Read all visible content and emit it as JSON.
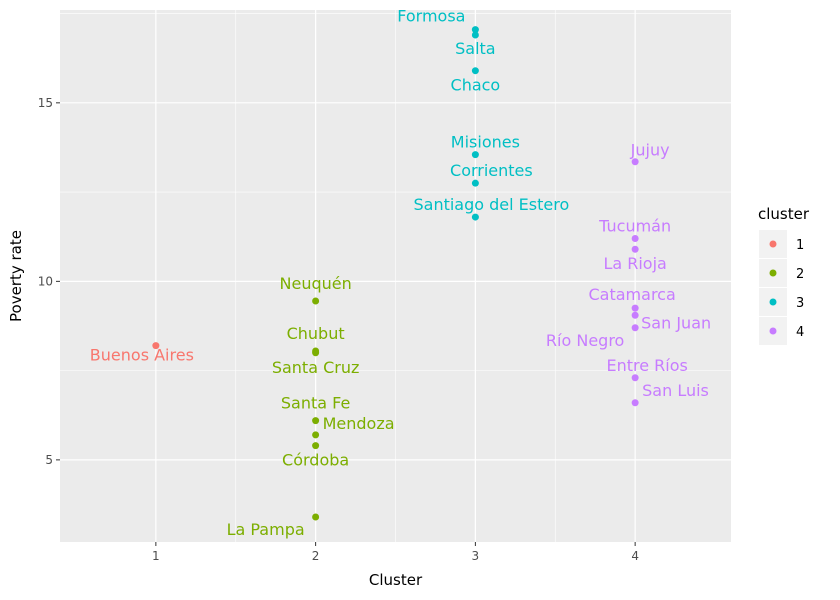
{
  "chart_data": {
    "type": "scatter",
    "title": "",
    "xlabel": "Cluster",
    "ylabel": "Poverty rate",
    "xlim": [
      0.4,
      4.6
    ],
    "ylim": [
      2.7,
      17.6
    ],
    "x_ticks": [
      1,
      2,
      3,
      4
    ],
    "y_ticks": [
      5,
      10,
      15
    ],
    "grid": true,
    "legend": {
      "title": "cluster",
      "position": "right",
      "entries": [
        {
          "label": "1",
          "color": "#F8766D"
        },
        {
          "label": "2",
          "color": "#7CAE00"
        },
        {
          "label": "3",
          "color": "#00BFC4"
        },
        {
          "label": "4",
          "color": "#C77CFF"
        }
      ]
    },
    "points": [
      {
        "label": "Buenos Aires",
        "cluster": 1,
        "x": 1,
        "y": 8.2
      },
      {
        "label": "Neuquén",
        "cluster": 2,
        "x": 2,
        "y": 9.45
      },
      {
        "label": "Chubut",
        "cluster": 2,
        "x": 2,
        "y": 8.05
      },
      {
        "label": "Santa Cruz",
        "cluster": 2,
        "x": 2,
        "y": 8.0
      },
      {
        "label": "Santa Fe",
        "cluster": 2,
        "x": 2,
        "y": 6.1
      },
      {
        "label": "Mendoza",
        "cluster": 2,
        "x": 2,
        "y": 5.7
      },
      {
        "label": "Córdoba",
        "cluster": 2,
        "x": 2,
        "y": 5.4
      },
      {
        "label": "La Pampa",
        "cluster": 2,
        "x": 2,
        "y": 3.4
      },
      {
        "label": "Formosa",
        "cluster": 3,
        "x": 3,
        "y": 17.05
      },
      {
        "label": "Salta",
        "cluster": 3,
        "x": 3,
        "y": 16.9
      },
      {
        "label": "Chaco",
        "cluster": 3,
        "x": 3,
        "y": 15.9
      },
      {
        "label": "Misiones",
        "cluster": 3,
        "x": 3,
        "y": 13.55
      },
      {
        "label": "Corrientes",
        "cluster": 3,
        "x": 3,
        "y": 12.75
      },
      {
        "label": "Santiago del Estero",
        "cluster": 3,
        "x": 3,
        "y": 11.8
      },
      {
        "label": "Jujuy",
        "cluster": 4,
        "x": 4,
        "y": 13.35
      },
      {
        "label": "Tucumán",
        "cluster": 4,
        "x": 4,
        "y": 11.2
      },
      {
        "label": "La Rioja",
        "cluster": 4,
        "x": 4,
        "y": 10.9
      },
      {
        "label": "Catamarca",
        "cluster": 4,
        "x": 4,
        "y": 9.25
      },
      {
        "label": "San Juan",
        "cluster": 4,
        "x": 4,
        "y": 9.05
      },
      {
        "label": "Río Negro",
        "cluster": 4,
        "x": 4,
        "y": 8.7
      },
      {
        "label": "Entre Ríos",
        "cluster": 4,
        "x": 4,
        "y": 7.3
      },
      {
        "label": "San Luis",
        "cluster": 4,
        "x": 4,
        "y": 6.6
      }
    ]
  }
}
